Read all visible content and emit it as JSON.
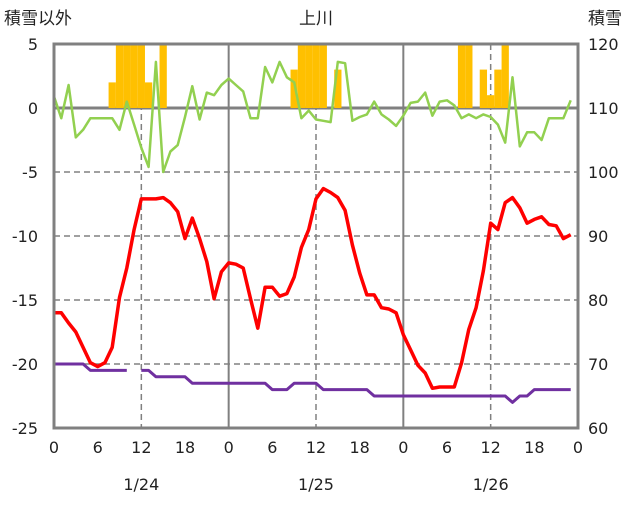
{
  "chart_data": {
    "type": "line",
    "title": "上川",
    "ylabel_left": "積雪以外",
    "ylabel_right": "積雪",
    "ylim_left": [
      -25,
      5
    ],
    "ylim_right": [
      60,
      120
    ],
    "yticks_left": [
      "5",
      "0",
      "-5",
      "-10",
      "-15",
      "-20",
      "-25"
    ],
    "yticks_right": [
      "120",
      "110",
      "100",
      "90",
      "80",
      "70",
      "60"
    ],
    "xlim_hours": [
      0,
      72
    ],
    "xtick_labels": [
      "0",
      "6",
      "12",
      "18",
      "0",
      "6",
      "12",
      "18",
      "0",
      "6",
      "12",
      "18",
      "0"
    ],
    "date_labels": [
      "1/24",
      "1/25",
      "1/26"
    ],
    "grid": true,
    "series": [
      {
        "name": "snowfall",
        "type": "bar",
        "axis": "left",
        "color": "#FFC000",
        "hours": [
          8,
          9,
          10,
          11,
          12,
          13,
          15,
          33,
          34,
          35,
          36,
          37,
          39,
          56,
          57,
          59,
          60,
          61,
          62
        ],
        "values": [
          2,
          5,
          5,
          5,
          5,
          2,
          5,
          3,
          5,
          5,
          5,
          5,
          3,
          5,
          5,
          3,
          1,
          3,
          5
        ]
      },
      {
        "name": "green",
        "type": "line",
        "axis": "left",
        "color": "#92D050",
        "values": [
          0.9,
          -0.8,
          1.8,
          -2.3,
          -1.7,
          -0.8,
          -0.8,
          -0.8,
          -0.8,
          -1.7,
          0.5,
          -1.3,
          -3.1,
          -4.6,
          3.6,
          -5.0,
          -3.4,
          -2.9,
          -0.7,
          1.7,
          -0.9,
          1.2,
          1.0,
          1.8,
          2.3,
          1.8,
          1.3,
          -0.8,
          -0.8,
          3.2,
          2.0,
          3.6,
          2.4,
          2.0,
          -0.8,
          -0.2,
          -0.9,
          -1.0,
          -1.1,
          3.6,
          3.5,
          -1.0,
          -0.7,
          -0.5,
          0.5,
          -0.5,
          -0.9,
          -1.4,
          -0.6,
          0.4,
          0.5,
          1.2,
          -0.6,
          0.5,
          0.6,
          0.2,
          -0.8,
          -0.5,
          -0.8,
          -0.5,
          -0.7,
          -1.3,
          -2.7,
          2.4,
          -3.0,
          -1.9,
          -1.9,
          -2.5,
          -0.8,
          -0.8,
          -0.8,
          0.6
        ]
      },
      {
        "name": "temperature",
        "type": "line",
        "axis": "left",
        "color": "#FF0000",
        "values": [
          -16.0,
          -16.0,
          -16.8,
          -17.5,
          -18.7,
          -19.9,
          -20.2,
          -19.9,
          -18.7,
          -14.8,
          -12.5,
          -9.5,
          -7.1,
          -7.1,
          -7.1,
          -7.0,
          -7.4,
          -8.1,
          -10.2,
          -8.6,
          -10.2,
          -12.0,
          -14.9,
          -12.8,
          -12.1,
          -12.2,
          -12.5,
          -14.9,
          -17.2,
          -14.0,
          -14.0,
          -14.7,
          -14.5,
          -13.2,
          -10.9,
          -9.5,
          -7.1,
          -6.3,
          -6.6,
          -7.0,
          -8.0,
          -10.7,
          -12.9,
          -14.6,
          -14.6,
          -15.6,
          -15.7,
          -16.0,
          -17.7,
          -18.9,
          -20.1,
          -20.7,
          -21.9,
          -21.8,
          -21.8,
          -21.8,
          -19.9,
          -17.3,
          -15.6,
          -12.7,
          -9.0,
          -9.5,
          -7.4,
          -7.0,
          -7.8,
          -9.0,
          -8.7,
          -8.5,
          -9.1,
          -9.2,
          -10.2,
          -9.9
        ]
      },
      {
        "name": "snow_depth",
        "type": "line",
        "axis": "right",
        "color": "#7030A0",
        "values": [
          70,
          70,
          70,
          70,
          70,
          69,
          69,
          69,
          69,
          69,
          69,
          null,
          69,
          69,
          68,
          68,
          68,
          68,
          68,
          67,
          67,
          67,
          67,
          67,
          67,
          67,
          67,
          67,
          67,
          67,
          66,
          66,
          66,
          67,
          67,
          67,
          67,
          66,
          66,
          66,
          66,
          66,
          66,
          66,
          65,
          65,
          65,
          65,
          65,
          65,
          65,
          65,
          65,
          65,
          65,
          65,
          65,
          65,
          65,
          65,
          65,
          65,
          65,
          64,
          65,
          65,
          66,
          66,
          66,
          66,
          66,
          66
        ]
      }
    ]
  }
}
